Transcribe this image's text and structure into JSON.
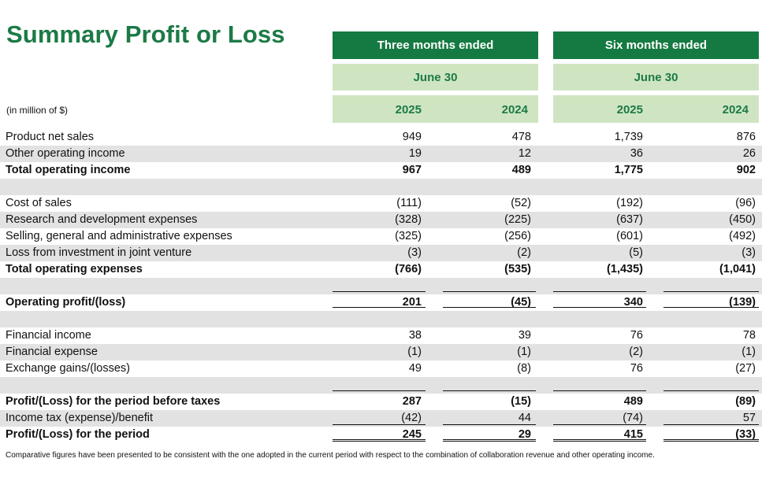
{
  "title": "Summary Profit or Loss",
  "unit_label": "(in million of $)",
  "header": {
    "three_months": "Three months ended",
    "six_months": "Six months ended",
    "date_three": "June 30",
    "date_six": "June 30",
    "years": [
      "2025",
      "2024",
      "2025",
      "2024"
    ]
  },
  "rows": [
    {
      "label": "Product net sales",
      "values": [
        "949",
        "478",
        "1,739",
        "876"
      ]
    },
    {
      "label": "Other operating income",
      "values": [
        "19",
        "12",
        "36",
        "26"
      ]
    },
    {
      "label": "Total operating income",
      "values": [
        "967",
        "489",
        "1,775",
        "902"
      ]
    },
    {
      "label": "",
      "values": [
        "",
        "",
        "",
        ""
      ]
    },
    {
      "label": "Cost of sales",
      "values": [
        "(111)",
        "(52)",
        "(192)",
        "(96)"
      ]
    },
    {
      "label": "Research and development expenses",
      "values": [
        "(328)",
        "(225)",
        "(637)",
        "(450)"
      ]
    },
    {
      "label": "Selling, general and administrative expenses",
      "values": [
        "(325)",
        "(256)",
        "(601)",
        "(492)"
      ]
    },
    {
      "label": "Loss from investment in joint venture",
      "values": [
        "(3)",
        "(2)",
        "(5)",
        "(3)"
      ]
    },
    {
      "label": "Total operating expenses",
      "values": [
        "(766)",
        "(535)",
        "(1,435)",
        "(1,041)"
      ]
    },
    {
      "label": "",
      "values": [
        "",
        "",
        "",
        ""
      ]
    },
    {
      "label": "Operating profit/(loss)",
      "values": [
        "201",
        "(45)",
        "340",
        "(139)"
      ]
    },
    {
      "label": "",
      "values": [
        "",
        "",
        "",
        ""
      ]
    },
    {
      "label": "Financial income",
      "values": [
        "38",
        "39",
        "76",
        "78"
      ]
    },
    {
      "label": "Financial expense",
      "values": [
        "(1)",
        "(1)",
        "(2)",
        "(1)"
      ]
    },
    {
      "label": "Exchange gains/(losses)",
      "values": [
        "49",
        "(8)",
        "76",
        "(27)"
      ]
    },
    {
      "label": "",
      "values": [
        "",
        "",
        "",
        ""
      ]
    },
    {
      "label": "Profit/(Loss) for the period before taxes",
      "values": [
        "287",
        "(15)",
        "489",
        "(89)"
      ]
    },
    {
      "label": "Income tax (expense)/benefit",
      "values": [
        "(42)",
        "44",
        "(74)",
        "57"
      ]
    },
    {
      "label": "Profit/(Loss) for the period",
      "values": [
        "245",
        "29",
        "415",
        "(33)"
      ]
    }
  ],
  "footnote": "Comparative figures have been presented to be consistent with the one adopted in the current period with respect to the combination of collaboration revenue and other operating income."
}
